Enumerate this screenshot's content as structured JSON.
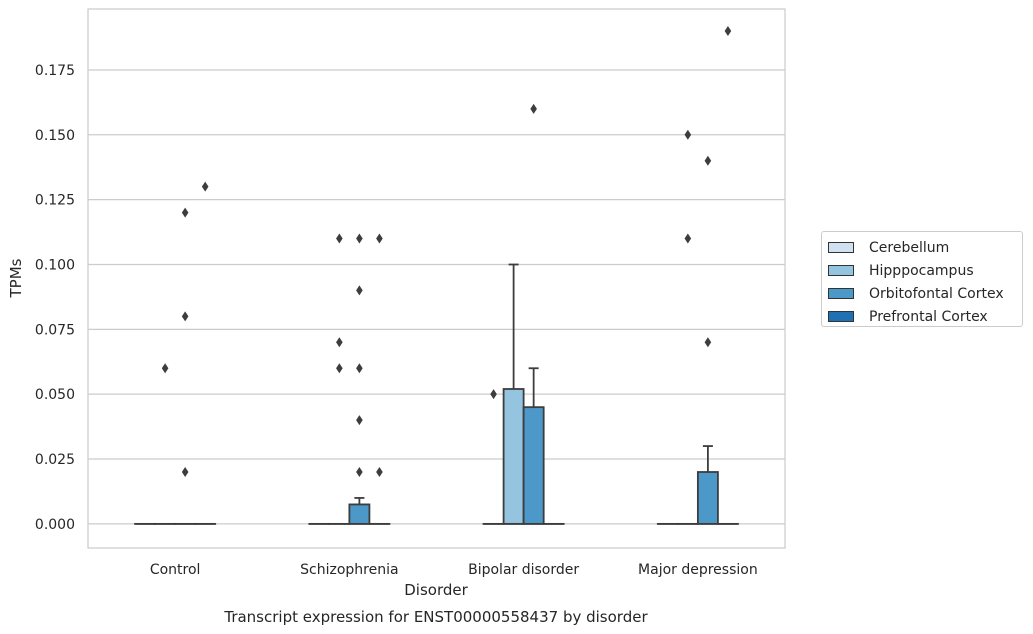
{
  "chart_data": {
    "type": "box",
    "title": "",
    "caption": "Transcript expression for ENST00000558437 by disorder",
    "xlabel": "Disorder",
    "ylabel": "TPMs",
    "categories": [
      "Control",
      "Schizophrenia",
      "Bipolar disorder",
      "Major depression"
    ],
    "ylim": [
      -0.0093,
      0.1985
    ],
    "yticks": [
      0.0,
      0.025,
      0.05,
      0.075,
      0.1,
      0.125,
      0.15,
      0.175
    ],
    "ytick_labels": [
      "0.000",
      "0.025",
      "0.050",
      "0.075",
      "0.100",
      "0.125",
      "0.150",
      "0.175"
    ],
    "grid": "horizontal",
    "legend_position": "right",
    "series": [
      {
        "name": "Cerebellum",
        "color": "#d0e1f2",
        "boxes": [
          {
            "q1": 0,
            "median": 0,
            "q3": 0,
            "whisker_low": 0,
            "whisker_high": 0,
            "outliers": []
          },
          {
            "q1": 0,
            "median": 0,
            "q3": 0,
            "whisker_low": 0,
            "whisker_high": 0,
            "outliers": []
          },
          {
            "q1": 0,
            "median": 0,
            "q3": 0,
            "whisker_low": 0,
            "whisker_high": 0,
            "outliers": [
              0.05
            ]
          },
          {
            "q1": 0,
            "median": 0,
            "q3": 0,
            "whisker_low": 0,
            "whisker_high": 0,
            "outliers": []
          }
        ]
      },
      {
        "name": "Hipppocampus",
        "color": "#94c4df",
        "boxes": [
          {
            "q1": 0,
            "median": 0,
            "q3": 0,
            "whisker_low": 0,
            "whisker_high": 0,
            "outliers": [
              0.06
            ]
          },
          {
            "q1": 0,
            "median": 0,
            "q3": 0,
            "whisker_low": 0,
            "whisker_high": 0,
            "outliers": [
              0.06,
              0.07,
              0.11
            ]
          },
          {
            "q1": 0,
            "median": 0,
            "q3": 0.052,
            "whisker_low": 0,
            "whisker_high": 0.1,
            "outliers": []
          },
          {
            "q1": 0,
            "median": 0,
            "q3": 0,
            "whisker_low": 0,
            "whisker_high": 0,
            "outliers": [
              0.11,
              0.15
            ]
          }
        ]
      },
      {
        "name": "Orbitofontal Cortex",
        "color": "#4b98c9",
        "boxes": [
          {
            "q1": 0,
            "median": 0,
            "q3": 0,
            "whisker_low": 0,
            "whisker_high": 0,
            "outliers": [
              0.02,
              0.08,
              0.12
            ]
          },
          {
            "q1": 0,
            "median": 0,
            "q3": 0.0075,
            "whisker_low": 0,
            "whisker_high": 0.01,
            "outliers": [
              0.02,
              0.04,
              0.06,
              0.09,
              0.11
            ]
          },
          {
            "q1": 0,
            "median": 0,
            "q3": 0.045,
            "whisker_low": 0,
            "whisker_high": 0.06,
            "outliers": [
              0.16
            ]
          },
          {
            "q1": 0,
            "median": 0,
            "q3": 0.02,
            "whisker_low": 0,
            "whisker_high": 0.03,
            "outliers": [
              0.07,
              0.14
            ]
          }
        ]
      },
      {
        "name": "Prefrontal Cortex",
        "color": "#2070b4",
        "boxes": [
          {
            "q1": 0,
            "median": 0,
            "q3": 0,
            "whisker_low": 0,
            "whisker_high": 0,
            "outliers": [
              0.13
            ]
          },
          {
            "q1": 0,
            "median": 0,
            "q3": 0,
            "whisker_low": 0,
            "whisker_high": 0,
            "outliers": [
              0.02,
              0.11
            ]
          },
          {
            "q1": 0,
            "median": 0,
            "q3": 0,
            "whisker_low": 0,
            "whisker_high": 0,
            "outliers": []
          },
          {
            "q1": 0,
            "median": 0,
            "q3": 0,
            "whisker_low": 0,
            "whisker_high": 0,
            "outliers": [
              0.19
            ]
          }
        ]
      }
    ]
  }
}
